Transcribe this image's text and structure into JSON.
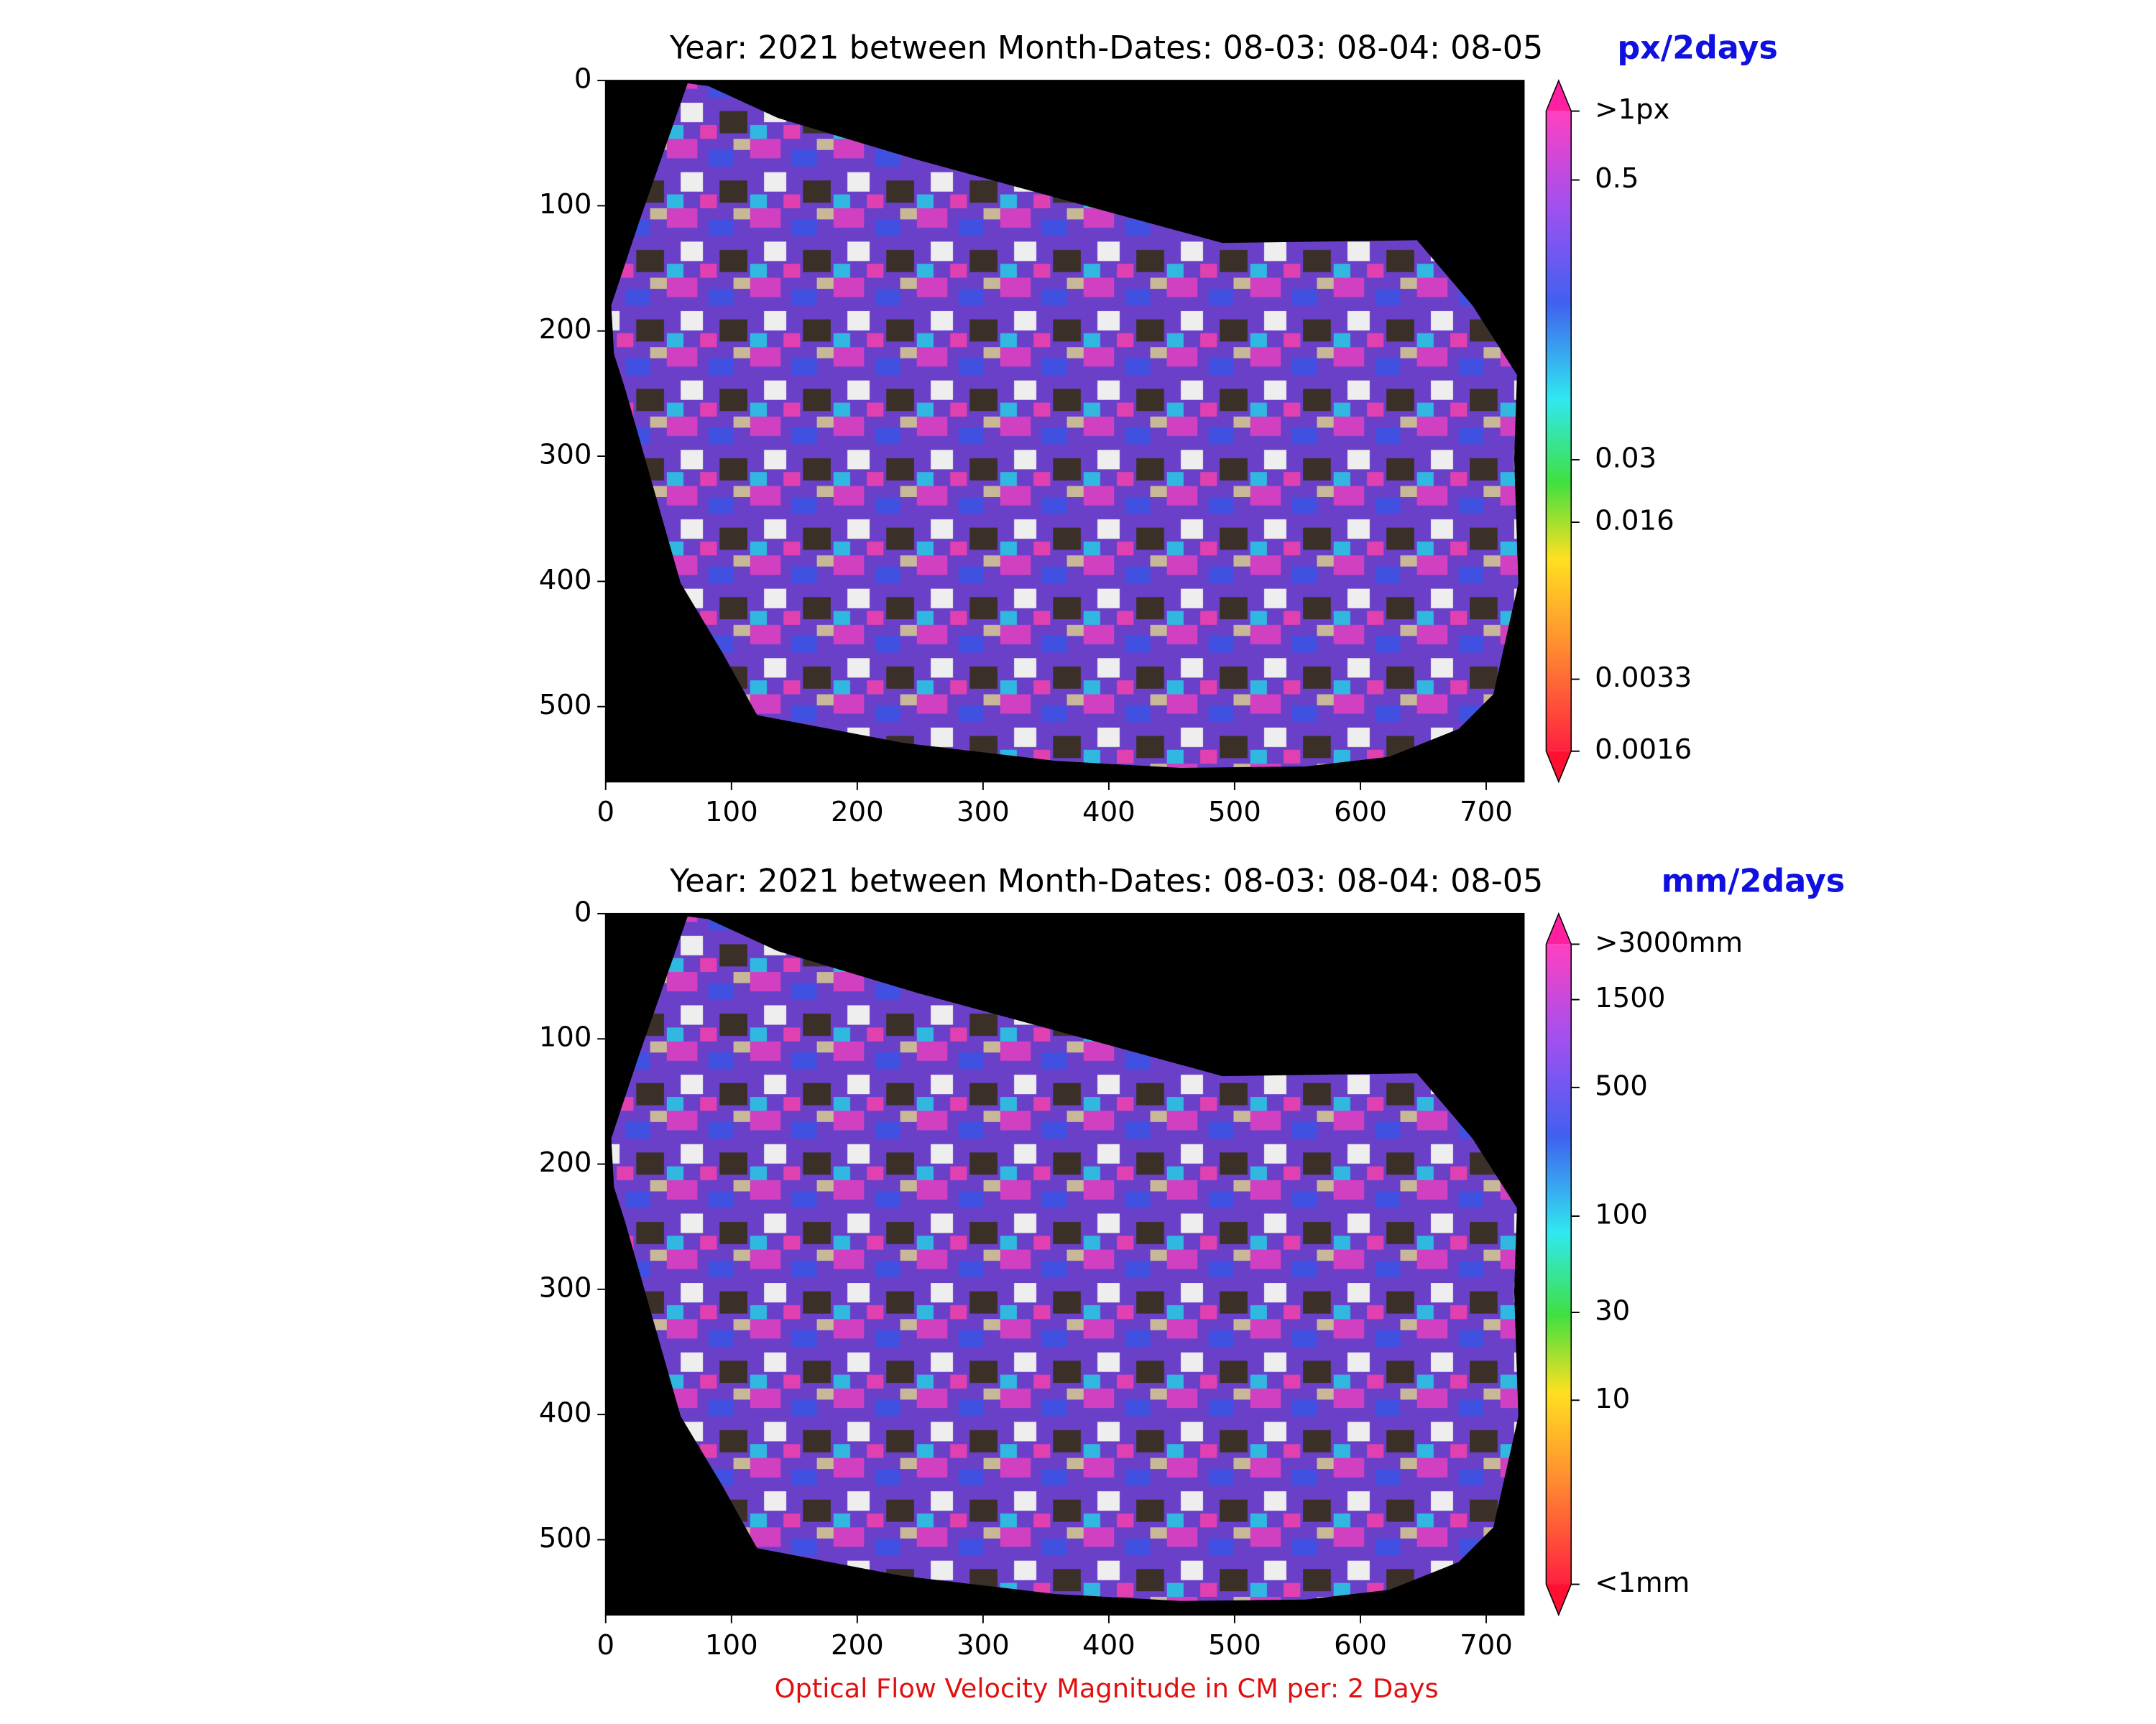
{
  "chart_data": [
    {
      "type": "image",
      "title": "Year: 2021 between Month-Dates: 08-03: 08-04: 08-05",
      "xlim": [
        0,
        730
      ],
      "ylim": [
        560,
        0
      ],
      "xticks": [
        0,
        100,
        200,
        300,
        400,
        500,
        600,
        700
      ],
      "yticks": [
        0,
        100,
        200,
        300,
        400,
        500
      ],
      "colorbar_label": "px/2days",
      "colorbar_scale": "log",
      "colorbar_lim": [
        0.0016,
        1
      ],
      "colorbar_ticks": [
        {
          "value": 1,
          "label": ">1px"
        },
        0.5,
        0.03,
        0.016,
        0.0033,
        0.0016
      ]
    },
    {
      "type": "image",
      "title": "Year: 2021 between Month-Dates: 08-03: 08-04: 08-05",
      "xlim": [
        0,
        730
      ],
      "ylim": [
        560,
        0
      ],
      "xticks": [
        0,
        100,
        200,
        300,
        400,
        500,
        600,
        700
      ],
      "yticks": [
        0,
        100,
        200,
        300,
        400,
        500
      ],
      "xlabel": "Optical Flow Velocity Magnitude in CM per: 2 Days",
      "colorbar_label": "mm/2days",
      "colorbar_scale": "log",
      "colorbar_lim": [
        1,
        3000
      ],
      "colorbar_ticks": [
        {
          "value": 3000,
          "label": ">3000mm"
        },
        1500,
        500,
        100,
        30,
        10,
        {
          "value": 1,
          "label": "<1mm"
        }
      ]
    }
  ]
}
